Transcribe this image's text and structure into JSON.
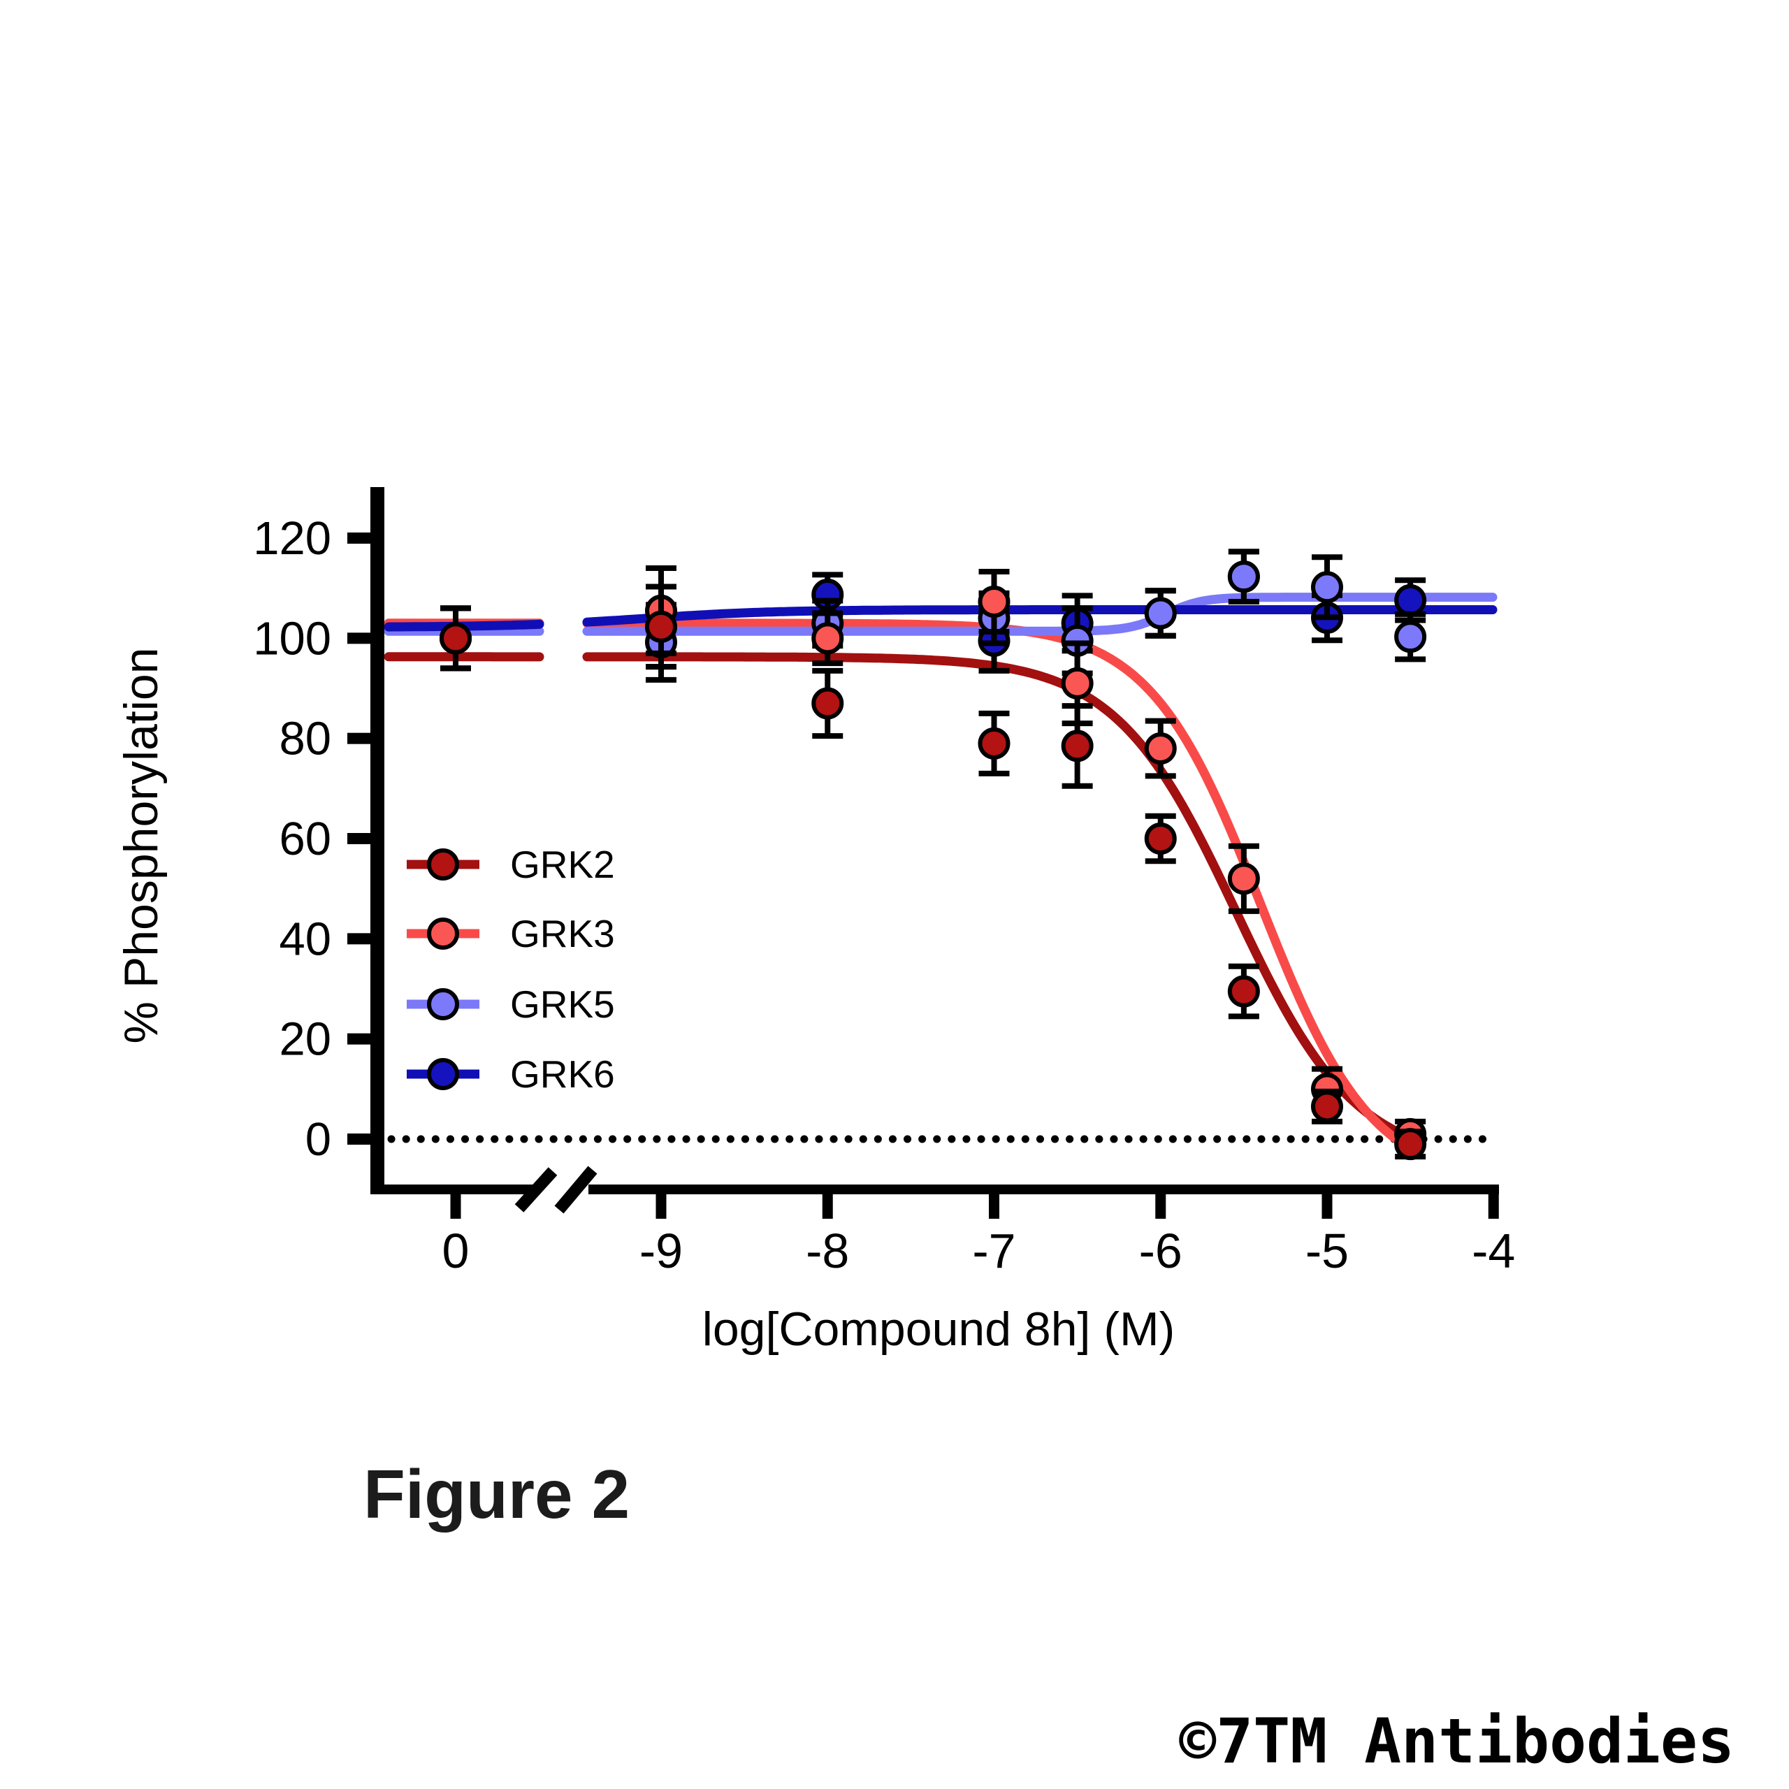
{
  "figure": {
    "caption": "Figure 2",
    "watermark": "©7TM Antibodies"
  },
  "chart_data": {
    "type": "scatter",
    "title": "",
    "xlabel": "log[Compound 8h] (M)",
    "ylabel": "% Phosphorylation",
    "x_axis": {
      "control_tick_label": "0",
      "log_ticks": [
        -9,
        -8,
        -7,
        -6,
        -5,
        -4
      ],
      "axis_break": true
    },
    "y_axis": {
      "ticks": [
        0,
        20,
        40,
        60,
        80,
        100,
        120
      ],
      "range": [
        -10,
        132
      ],
      "dotted_zero_line": true
    },
    "legend_position": "inside-left-middle",
    "series": [
      {
        "name": "GRK2",
        "marker_color": "#B31312",
        "line_color": "#A31010",
        "points": [
          {
            "x": "control",
            "y": 100,
            "err": 6
          },
          {
            "x": -9,
            "y": 102.3,
            "err": 8
          },
          {
            "x": -8,
            "y": 87,
            "err": 6.5
          },
          {
            "x": -7,
            "y": 79,
            "err": 6
          },
          {
            "x": -6.5,
            "y": 78.5,
            "err": 8
          },
          {
            "x": -6,
            "y": 60,
            "err": 4.5
          },
          {
            "x": -5.5,
            "y": 29.5,
            "err": 5
          },
          {
            "x": -5,
            "y": 6.5,
            "err": 3
          },
          {
            "x": -4.5,
            "y": -1,
            "err": 2.5
          }
        ],
        "fit": {
          "top": 96.3,
          "bottom": -5,
          "logec50": -5.55,
          "hill": 1.2,
          "direction": "down",
          "x_end": -4.47
        }
      },
      {
        "name": "GRK3",
        "marker_color": "#FA5654",
        "line_color": "#F84B49",
        "points": [
          {
            "x": "control",
            "y": 100,
            "err": 6
          },
          {
            "x": -9,
            "y": 105.5,
            "err": 8.5
          },
          {
            "x": -8,
            "y": 100,
            "err": 5
          },
          {
            "x": -7,
            "y": 107.3,
            "err": 6
          },
          {
            "x": -6.5,
            "y": 91,
            "err": 8
          },
          {
            "x": -6,
            "y": 78,
            "err": 5.5
          },
          {
            "x": -5.5,
            "y": 52,
            "err": 6.5
          },
          {
            "x": -5,
            "y": 10,
            "err": 4
          },
          {
            "x": -4.5,
            "y": 1,
            "err": 2.5
          }
        ],
        "fit": {
          "top": 103,
          "bottom": -9,
          "logec50": -5.4,
          "hill": 1.3,
          "direction": "down",
          "x_end": -4.47
        }
      },
      {
        "name": "GRK5",
        "marker_color": "#7C7AFA",
        "line_color": "#7B79F8",
        "points": [
          {
            "x": "control",
            "y": 100,
            "err": 6
          },
          {
            "x": -9,
            "y": 99.2,
            "err": 7.5
          },
          {
            "x": -8,
            "y": 103,
            "err": 4.5
          },
          {
            "x": -7,
            "y": 104,
            "err": 5
          },
          {
            "x": -6.5,
            "y": 99.5,
            "err": 6.5
          },
          {
            "x": -6,
            "y": 105,
            "err": 4.5
          },
          {
            "x": -5.5,
            "y": 112.3,
            "err": 5
          },
          {
            "x": -5,
            "y": 110.2,
            "err": 6
          },
          {
            "x": -4.5,
            "y": 100.3,
            "err": 4.5
          }
        ],
        "fit": {
          "top": 108.2,
          "bottom": 101.4,
          "logec50": -5.97,
          "hill": 4,
          "direction": "up",
          "x_end": -4.0
        }
      },
      {
        "name": "GRK6",
        "marker_color": "#1513BE",
        "line_color": "#100FB6",
        "points": [
          {
            "x": "control",
            "y": 100,
            "err": 6
          },
          {
            "x": -9,
            "y": 102.3,
            "err": 8
          },
          {
            "x": -8,
            "y": 108.7,
            "err": 4
          },
          {
            "x": -7,
            "y": 99.5,
            "err": 6
          },
          {
            "x": -6.5,
            "y": 103,
            "err": 5.5
          },
          {
            "x": -6,
            "y": 105,
            "err": 4.5
          },
          {
            "x": -5.5,
            "y": 112.3,
            "err": 5
          },
          {
            "x": -5,
            "y": 104.1,
            "err": 4.5
          },
          {
            "x": -4.5,
            "y": 107.6,
            "err": 4
          }
        ],
        "fit": {
          "top": 105.7,
          "bottom": 102.2,
          "logec50": -9.1,
          "hill": 1.1,
          "direction": "up",
          "x_end": -4.0
        }
      }
    ]
  }
}
